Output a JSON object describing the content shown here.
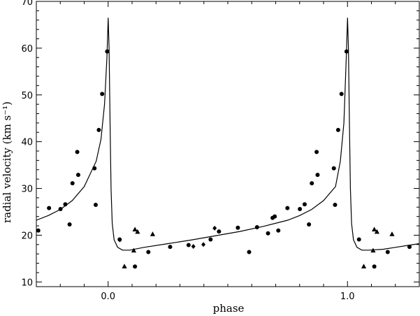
{
  "chart_data": {
    "type": "scatter",
    "title": "",
    "xlabel": "phase",
    "ylabel": "radial velocity (km s⁻¹)",
    "xlim": [
      -0.3,
      1.3
    ],
    "ylim": [
      9,
      70
    ],
    "x_ticks": [
      0.0,
      1.0
    ],
    "x_tick_labels": [
      "0.0",
      "1.0"
    ],
    "y_ticks": [
      10,
      20,
      30,
      40,
      50,
      60,
      70
    ],
    "y_tick_labels": [
      "10",
      "20",
      "30",
      "40",
      "50",
      "60",
      "70"
    ],
    "grid": false,
    "legend": "none",
    "series": [
      {
        "marker": "circle",
        "points": [
          [
            -0.292,
            21.0
          ],
          [
            -0.247,
            25.8
          ],
          [
            -0.199,
            25.6
          ],
          [
            -0.179,
            26.6
          ],
          [
            -0.161,
            22.3
          ],
          [
            -0.149,
            31.1
          ],
          [
            -0.129,
            37.8
          ],
          [
            -0.125,
            32.9
          ],
          [
            -0.057,
            34.3
          ],
          [
            -0.052,
            26.5
          ],
          [
            -0.039,
            42.5
          ],
          [
            -0.025,
            50.2
          ],
          [
            -0.004,
            59.3
          ],
          [
            0.048,
            19.1
          ],
          [
            0.112,
            13.3
          ],
          [
            0.168,
            16.4
          ],
          [
            0.259,
            17.5
          ],
          [
            0.336,
            17.9
          ],
          [
            0.428,
            19.1
          ],
          [
            0.463,
            20.8
          ],
          [
            0.542,
            21.6
          ],
          [
            0.589,
            16.4
          ],
          [
            0.622,
            21.7
          ],
          [
            0.668,
            20.4
          ],
          [
            0.687,
            23.7
          ],
          [
            0.696,
            24.0
          ],
          [
            0.711,
            21.0
          ],
          [
            0.749,
            25.8
          ],
          [
            0.801,
            25.6
          ],
          [
            0.821,
            26.6
          ],
          [
            0.839,
            22.3
          ],
          [
            0.851,
            31.1
          ],
          [
            0.871,
            37.8
          ],
          [
            0.875,
            32.9
          ],
          [
            0.943,
            34.3
          ],
          [
            0.948,
            26.5
          ],
          [
            0.961,
            42.5
          ],
          [
            0.975,
            50.2
          ],
          [
            0.996,
            59.3
          ],
          [
            1.048,
            19.1
          ],
          [
            1.112,
            13.3
          ],
          [
            1.168,
            16.4
          ],
          [
            1.259,
            17.5
          ]
        ]
      },
      {
        "marker": "triangle",
        "points": [
          [
            0.068,
            13.3
          ],
          [
            0.107,
            16.7
          ],
          [
            0.112,
            21.2
          ],
          [
            0.123,
            20.7
          ],
          [
            0.186,
            20.2
          ],
          [
            1.068,
            13.3
          ],
          [
            1.107,
            16.7
          ],
          [
            1.112,
            21.2
          ],
          [
            1.123,
            20.7
          ],
          [
            1.186,
            20.2
          ]
        ]
      },
      {
        "marker": "diamond",
        "points": [
          [
            0.049,
            19.0
          ],
          [
            0.356,
            17.6
          ],
          [
            0.398,
            18.0
          ],
          [
            0.445,
            21.5
          ]
        ]
      }
    ],
    "model_curve": {
      "style": "solid-line",
      "points": [
        [
          -0.3,
          23.2
        ],
        [
          -0.25,
          24.2
        ],
        [
          -0.2,
          25.5
        ],
        [
          -0.15,
          27.4
        ],
        [
          -0.1,
          30.4
        ],
        [
          -0.05,
          35.8
        ],
        [
          -0.03,
          40.5
        ],
        [
          -0.015,
          48.0
        ],
        [
          -0.005,
          58.0
        ],
        [
          0.0,
          66.5
        ],
        [
          0.004,
          60.0
        ],
        [
          0.008,
          44.0
        ],
        [
          0.012,
          30.0
        ],
        [
          0.017,
          22.5
        ],
        [
          0.025,
          19.0
        ],
        [
          0.04,
          17.4
        ],
        [
          0.06,
          16.8
        ],
        [
          0.09,
          16.8
        ],
        [
          0.15,
          17.4
        ],
        [
          0.25,
          18.2
        ],
        [
          0.35,
          19.0
        ],
        [
          0.45,
          19.9
        ],
        [
          0.55,
          20.8
        ],
        [
          0.65,
          21.9
        ],
        [
          0.75,
          23.2
        ],
        [
          0.8,
          24.2
        ],
        [
          0.85,
          25.5
        ],
        [
          0.9,
          27.4
        ],
        [
          0.95,
          30.4
        ],
        [
          0.97,
          35.8
        ],
        [
          0.985,
          44.0
        ],
        [
          0.995,
          58.0
        ],
        [
          1.0,
          66.5
        ],
        [
          1.004,
          60.0
        ],
        [
          1.008,
          44.0
        ],
        [
          1.012,
          30.0
        ],
        [
          1.017,
          22.5
        ],
        [
          1.025,
          19.0
        ],
        [
          1.04,
          17.4
        ],
        [
          1.06,
          16.8
        ],
        [
          1.09,
          16.8
        ],
        [
          1.15,
          17.0
        ],
        [
          1.2,
          17.4
        ],
        [
          1.25,
          17.8
        ],
        [
          1.3,
          18.2
        ]
      ]
    }
  }
}
